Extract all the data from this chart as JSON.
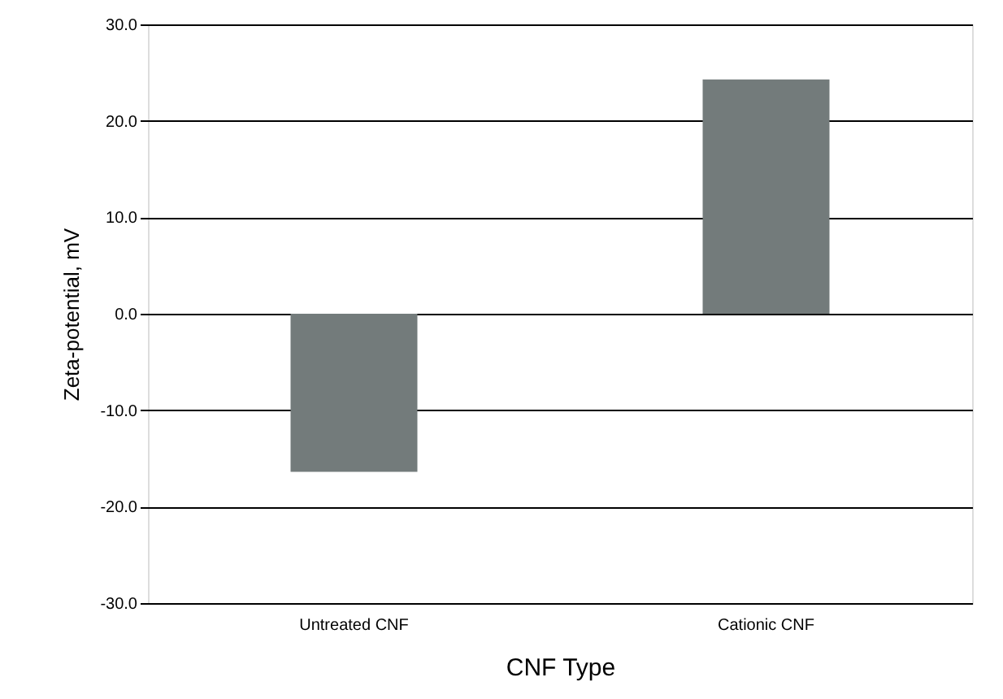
{
  "chart_data": {
    "type": "bar",
    "xlabel": "CNF Type",
    "ylabel": "Zeta-potential, mV",
    "categories": [
      "Untreated CNF",
      "Cationic CNF"
    ],
    "values": [
      -16.4,
      24.3
    ],
    "color": "#737b7b",
    "ylim": [
      -30,
      30
    ],
    "yticks": [
      {
        "value": -30,
        "label": "-30.0"
      },
      {
        "value": -20,
        "label": "-20.0"
      },
      {
        "value": -10,
        "label": "-10.0"
      },
      {
        "value": 0,
        "label": "0.0"
      },
      {
        "value": 10,
        "label": "10.0"
      },
      {
        "value": 20,
        "label": "20.0"
      },
      {
        "value": 30,
        "label": "30.0"
      }
    ],
    "grid": "y"
  }
}
